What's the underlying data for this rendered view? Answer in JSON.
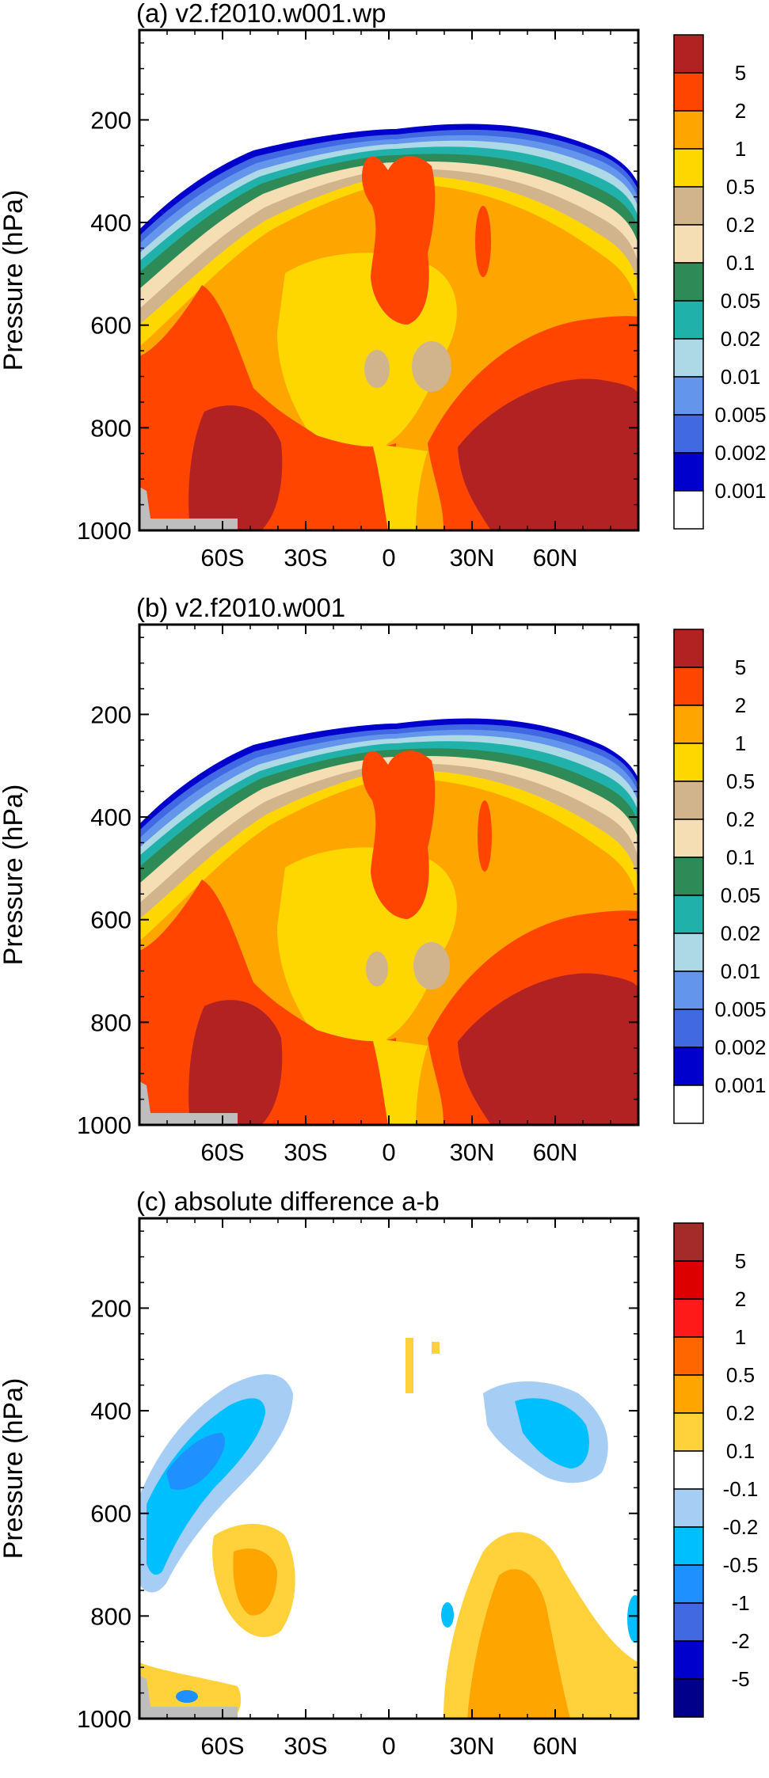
{
  "chart_data": [
    {
      "type": "heatmap",
      "title": "(a) v2.f2010.w001.wp",
      "ylabel": "Pressure (hPa)",
      "xlabel": "",
      "x_ticks": [
        "60S",
        "30S",
        "0",
        "30N",
        "60N"
      ],
      "x_tick_values": [
        -60,
        -30,
        0,
        30,
        60
      ],
      "y_ticks": [
        "200",
        "400",
        "600",
        "800",
        "1000"
      ],
      "y_tick_values": [
        200,
        400,
        600,
        800,
        1000
      ],
      "xlim": [
        -90,
        90
      ],
      "ylim": [
        1000,
        25
      ],
      "colorbar": {
        "labels": [
          "5",
          "2",
          "1",
          "0.5",
          "0.2",
          "0.1",
          "0.05",
          "0.02",
          "0.01",
          "0.005",
          "0.002",
          "0.001"
        ],
        "colors": [
          "#b22222",
          "#ff4500",
          "#ffa500",
          "#ffd700",
          "#d2b48c",
          "#f5deb3",
          "#2e8b57",
          "#20b2aa",
          "#add8e6",
          "#6495ed",
          "#4169e1",
          "#0000cd",
          "#ffffff"
        ]
      }
    },
    {
      "type": "heatmap",
      "title": "(b) v2.f2010.w001",
      "ylabel": "Pressure (hPa)",
      "xlabel": "",
      "x_ticks": [
        "60S",
        "30S",
        "0",
        "30N",
        "60N"
      ],
      "x_tick_values": [
        -60,
        -30,
        0,
        30,
        60
      ],
      "y_ticks": [
        "200",
        "400",
        "600",
        "800",
        "1000"
      ],
      "y_tick_values": [
        200,
        400,
        600,
        800,
        1000
      ],
      "xlim": [
        -90,
        90
      ],
      "ylim": [
        1000,
        25
      ],
      "colorbar": {
        "labels": [
          "5",
          "2",
          "1",
          "0.5",
          "0.2",
          "0.1",
          "0.05",
          "0.02",
          "0.01",
          "0.005",
          "0.002",
          "0.001"
        ],
        "colors": [
          "#b22222",
          "#ff4500",
          "#ffa500",
          "#ffd700",
          "#d2b48c",
          "#f5deb3",
          "#2e8b57",
          "#20b2aa",
          "#add8e6",
          "#6495ed",
          "#4169e1",
          "#0000cd",
          "#ffffff"
        ]
      }
    },
    {
      "type": "heatmap",
      "title": "(c) absolute difference a-b",
      "ylabel": "Pressure (hPa)",
      "xlabel": "",
      "x_ticks": [
        "60S",
        "30S",
        "0",
        "30N",
        "60N"
      ],
      "x_tick_values": [
        -60,
        -30,
        0,
        30,
        60
      ],
      "y_ticks": [
        "200",
        "400",
        "600",
        "800",
        "1000"
      ],
      "y_tick_values": [
        200,
        400,
        600,
        800,
        1000
      ],
      "xlim": [
        -90,
        90
      ],
      "ylim": [
        1000,
        25
      ],
      "colorbar": {
        "labels": [
          "5",
          "2",
          "1",
          "0.5",
          "0.2",
          "0.1",
          "-0.1",
          "-0.2",
          "-0.5",
          "-1",
          "-2",
          "-5"
        ],
        "colors": [
          "#a52a2a",
          "#dc0000",
          "#ff1a1a",
          "#ff6600",
          "#ffa500",
          "#ffd23c",
          "#ffffff",
          "#a6cef5",
          "#00bfff",
          "#1e90ff",
          "#4169e1",
          "#0000cd",
          "#00008b"
        ]
      }
    }
  ]
}
